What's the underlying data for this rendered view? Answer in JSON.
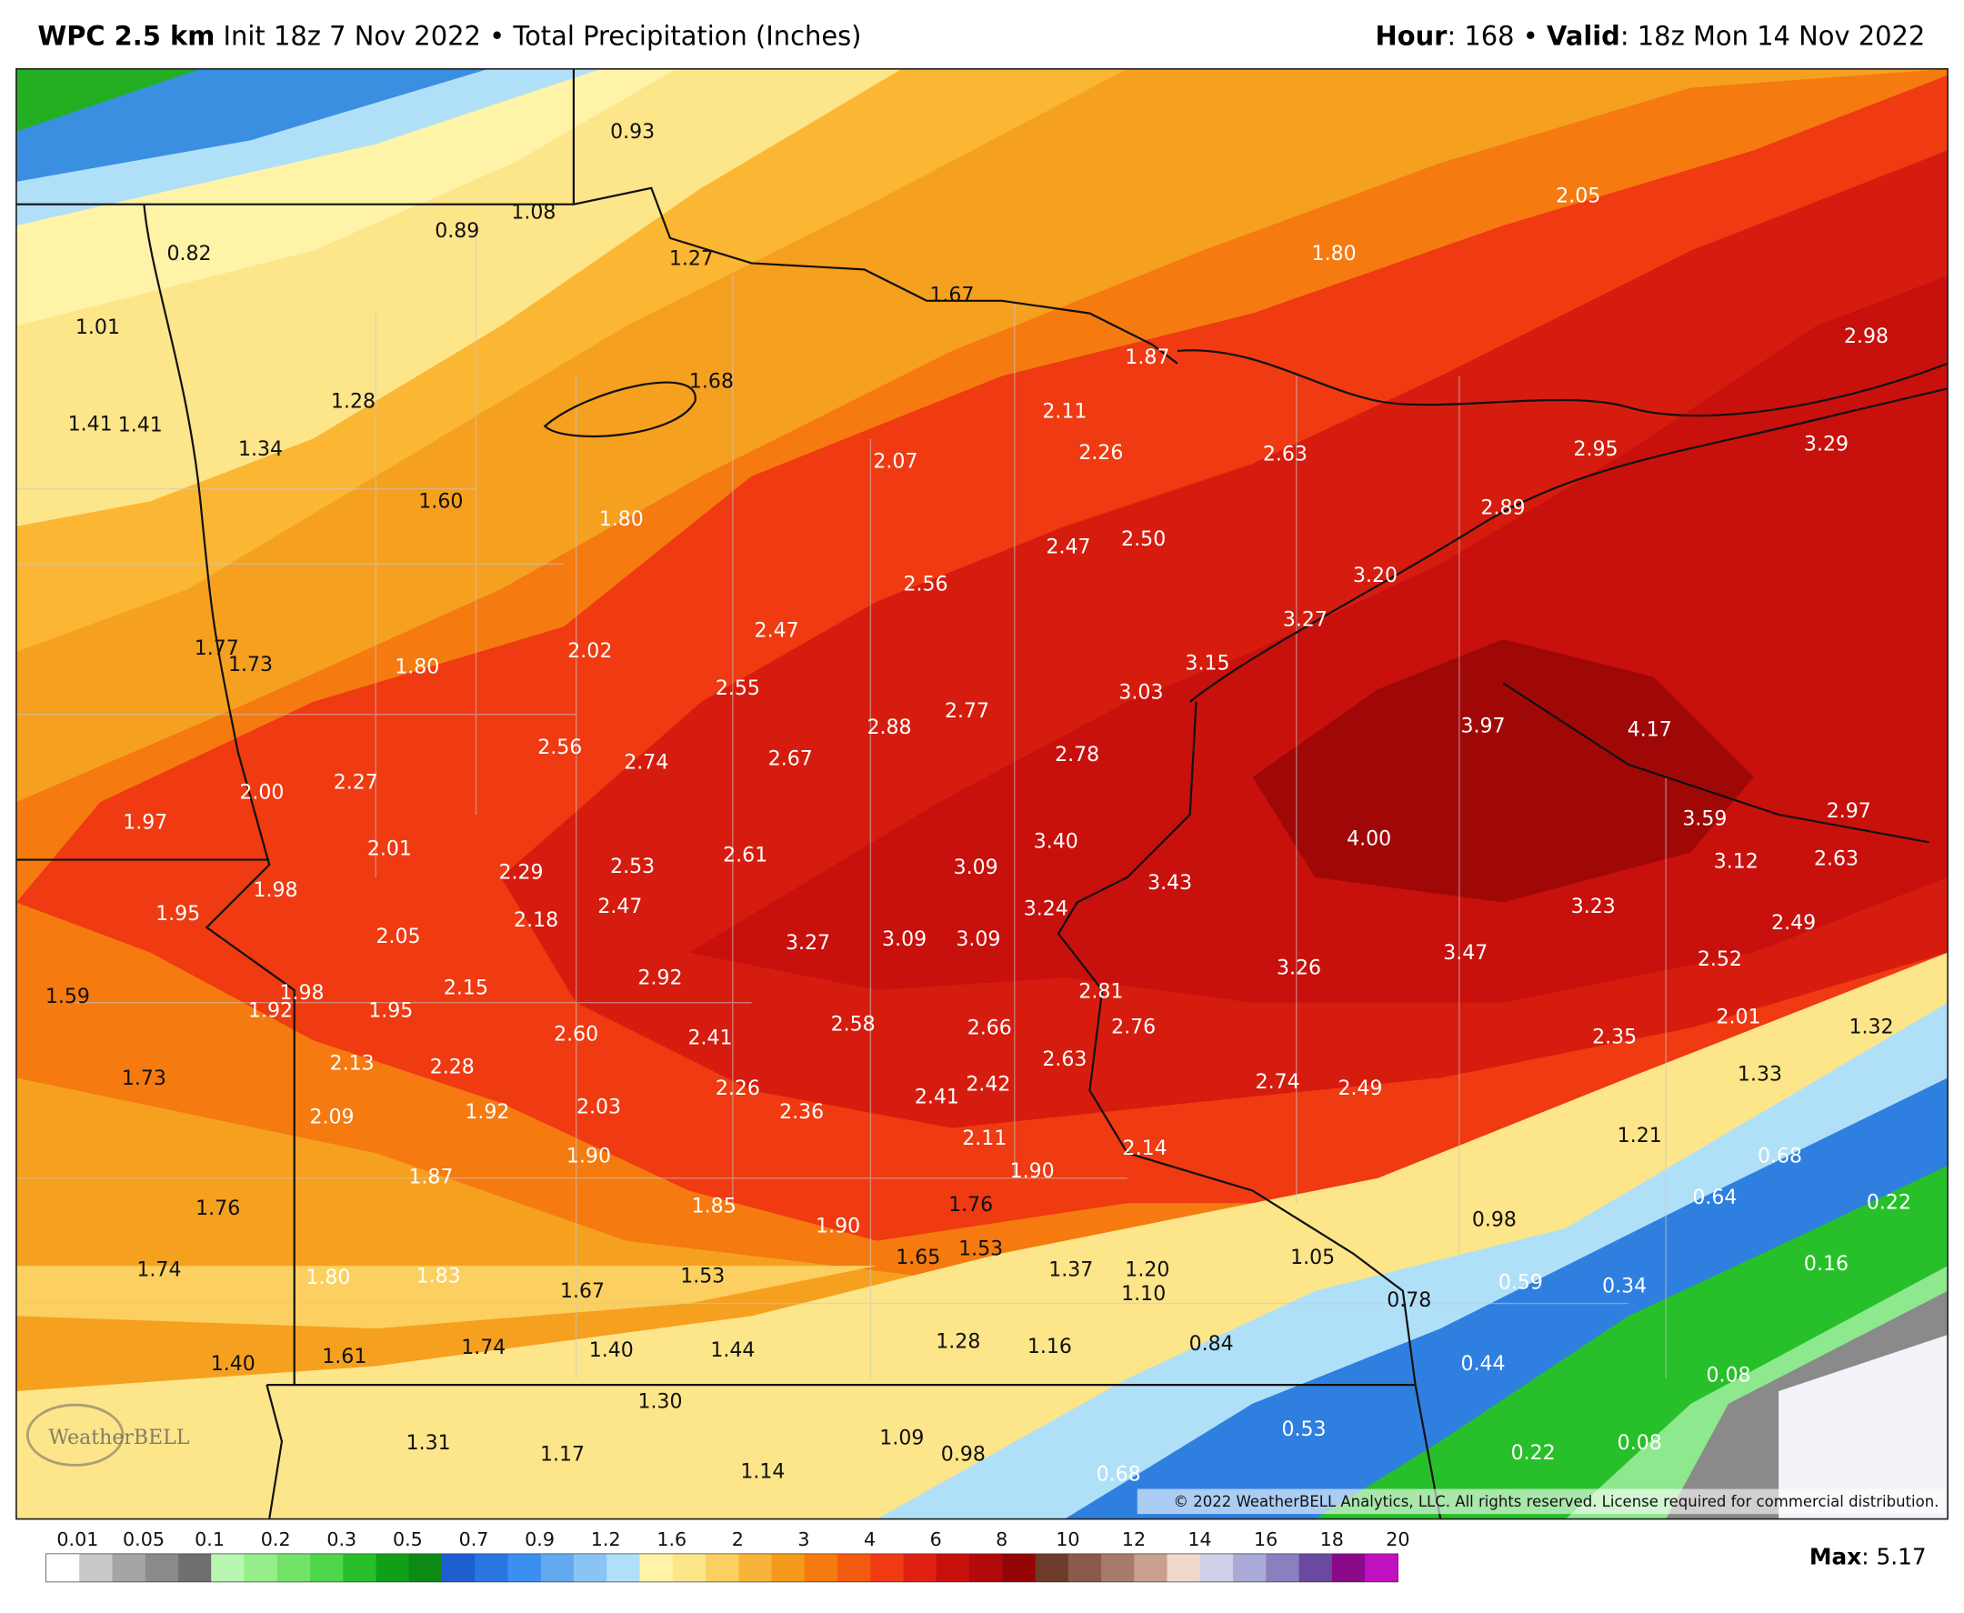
{
  "header": {
    "model": "WPC 2.5 km",
    "init": "Init 18z 7 Nov 2022",
    "sep": "•",
    "product": "Total Precipitation (Inches)",
    "hour_label": "Hour",
    "hour": ": 168",
    "sep2": "•",
    "valid_label": "Valid",
    "valid": ": 18z Mon 14 Nov 2022"
  },
  "map": {
    "labels": [
      "0.93",
      "0.82",
      "0.89",
      "1.08",
      "1.27",
      "1.67",
      "1.80",
      "2.05",
      "2.98",
      "1.01",
      "1.28",
      "1.68",
      "1.87",
      "2.11",
      "1.41",
      "1.41",
      "1.34",
      "2.07",
      "2.26",
      "2.63",
      "2.95",
      "3.29",
      "1.60",
      "1.80",
      "2.89",
      "2.47",
      "2.50",
      "2.56",
      "3.20",
      "3.27",
      "2.47",
      "1.77",
      "1.73",
      "1.80",
      "2.02",
      "3.15",
      "2.55",
      "3.03",
      "2.77",
      "2.88",
      "3.97",
      "4.17",
      "2.56",
      "2.74",
      "2.67",
      "2.78",
      "2.27",
      "2.00",
      "1.97",
      "3.59",
      "2.97",
      "3.40",
      "4.00",
      "2.01",
      "2.61",
      "2.29",
      "2.53",
      "3.09",
      "3.12",
      "2.63",
      "1.98",
      "3.43",
      "1.95",
      "2.18",
      "2.47",
      "3.24",
      "3.23",
      "2.49",
      "2.05",
      "3.27",
      "3.09",
      "3.09",
      "3.47",
      "2.52",
      "3.26",
      "1.59",
      "1.98",
      "1.92",
      "1.95",
      "2.15",
      "2.92",
      "2.81",
      "2.60",
      "2.41",
      "2.58",
      "2.66",
      "2.76",
      "2.35",
      "2.01",
      "1.32",
      "2.13",
      "2.28",
      "2.63",
      "1.73",
      "1.33",
      "2.26",
      "2.42",
      "2.74",
      "2.49",
      "2.41",
      "2.09",
      "1.92",
      "2.03",
      "2.36",
      "2.11",
      "1.21",
      "2.14",
      "1.90",
      "1.87",
      "1.90",
      "0.68",
      "1.76",
      "1.85",
      "1.76",
      "0.64",
      "0.22",
      "1.90",
      "0.98",
      "1.65",
      "1.53",
      "1.05",
      "1.74",
      "1.80",
      "1.83",
      "1.67",
      "1.53",
      "1.37",
      "1.20",
      "1.10",
      "0.59",
      "0.34",
      "0.16",
      "0.78",
      "1.40",
      "1.61",
      "1.74",
      "1.40",
      "1.44",
      "1.28",
      "1.16",
      "0.84",
      "0.44",
      "0.08",
      "1.30",
      "1.31",
      "1.17",
      "1.09",
      "0.98",
      "0.53",
      "1.14",
      "0.68",
      "0.22",
      "0.08"
    ],
    "copyright": "© 2022 WeatherBELL Analytics, LLC. All rights reserved. License required for commercial distribution.",
    "logo": "WeatherBELL"
  },
  "legend": {
    "ticks": [
      "0.01",
      "0.05",
      "0.1",
      "0.2",
      "0.3",
      "0.5",
      "0.7",
      "0.9",
      "1.2",
      "1.6",
      "2",
      "3",
      "4",
      "6",
      "8",
      "10",
      "12",
      "14",
      "16",
      "18",
      "20"
    ],
    "colors": [
      "#ffffff",
      "#c9c9c9",
      "#a5a5a5",
      "#8a8a8a",
      "#6f6f6f",
      "#b8f5b0",
      "#96ee8a",
      "#73e368",
      "#4fd64a",
      "#27c02a",
      "#10a018",
      "#0c8a14",
      "#1e5fd0",
      "#2a76e0",
      "#3a8ff0",
      "#62a9f0",
      "#8ac4f5",
      "#b0e0f8",
      "#fff3a8",
      "#fde58a",
      "#fbd060",
      "#f8b43a",
      "#f59a1a",
      "#f57a10",
      "#f25a10",
      "#ef3a12",
      "#e02010",
      "#c8100c",
      "#b00a0a",
      "#950505",
      "#6e3a2a",
      "#8a5a4a",
      "#a87a6a",
      "#c9a090",
      "#f0d8cc",
      "#cfd0e8",
      "#aaaad8",
      "#8a80c0",
      "#6a4aa0",
      "#8a0a8a",
      "#c010c0"
    ]
  },
  "max": {
    "label": "Max",
    "value": ": 5.17"
  }
}
